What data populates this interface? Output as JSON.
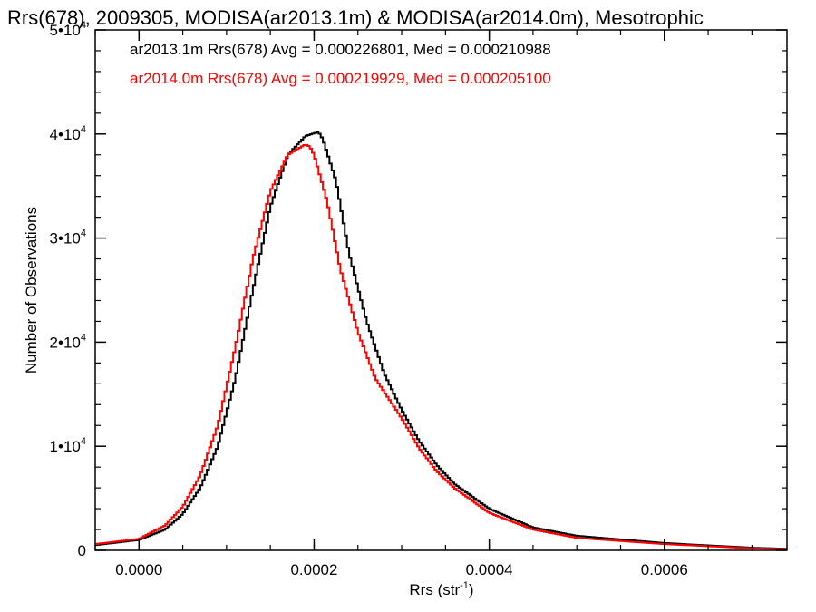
{
  "chart_data": {
    "type": "line",
    "title": "Rrs(678), 2009305, MODISA(ar2013.1m) & MODISA(ar2014.0m), Mesotrophic",
    "xlabel": "Rrs (str",
    "xlabel_sup": "-1",
    "xlabel_end": ")",
    "ylabel": "Number of Observations",
    "xlim": [
      -5e-05,
      0.00074
    ],
    "ylim": [
      0,
      50000
    ],
    "x_ticks": [
      {
        "value": 0.0,
        "label": "0.0000"
      },
      {
        "value": 0.0002,
        "label": "0.0002"
      },
      {
        "value": 0.0004,
        "label": "0.0004"
      },
      {
        "value": 0.0006,
        "label": "0.0006"
      }
    ],
    "y_ticks": [
      {
        "value": 0,
        "label": "0",
        "sup": ""
      },
      {
        "value": 10000,
        "label": "1•10",
        "sup": "4"
      },
      {
        "value": 20000,
        "label": "2•10",
        "sup": "4"
      },
      {
        "value": 30000,
        "label": "3•10",
        "sup": "4"
      },
      {
        "value": 40000,
        "label": "4•10",
        "sup": "4"
      },
      {
        "value": 50000,
        "label": "5•10",
        "sup": "4"
      }
    ],
    "series": [
      {
        "name": "ar2013.1m",
        "color": "#000000",
        "stats_text": "ar2013.1m Rrs(678) Avg = 0.000226801, Med = 0.000210988",
        "x": [
          -5e-05,
          0.0,
          3e-05,
          5e-05,
          7e-05,
          9e-05,
          0.00011,
          0.00013,
          0.00015,
          0.00017,
          0.00019,
          0.000205,
          0.00021,
          0.000225,
          0.00024,
          0.00026,
          0.00028,
          0.0003,
          0.00032,
          0.00034,
          0.00036,
          0.0004,
          0.00045,
          0.0005,
          0.0006,
          0.0007,
          0.00074
        ],
        "y": [
          500,
          1000,
          2000,
          3500,
          6000,
          10000,
          16500,
          25000,
          33000,
          38000,
          39800,
          40200,
          39500,
          35500,
          28500,
          22000,
          17000,
          13500,
          10500,
          8200,
          6400,
          4000,
          2200,
          1400,
          700,
          250,
          150
        ]
      },
      {
        "name": "ar2014.0m",
        "color": "#ff0000",
        "stats_text": "ar2014.0m Rrs(678) Avg = 0.000219929, Med = 0.000205100",
        "x": [
          -5e-05,
          0.0,
          3e-05,
          5e-05,
          7e-05,
          9e-05,
          0.00011,
          0.00013,
          0.00015,
          0.00017,
          0.00019,
          0.000195,
          0.0002,
          0.000215,
          0.00023,
          0.00025,
          0.00027,
          0.0003,
          0.00032,
          0.00034,
          0.00036,
          0.0004,
          0.00045,
          0.0005,
          0.0006,
          0.0007,
          0.00074
        ],
        "y": [
          600,
          1100,
          2400,
          4200,
          7200,
          12000,
          19500,
          28000,
          34500,
          38000,
          39000,
          38800,
          38000,
          33500,
          27000,
          21000,
          16500,
          12700,
          9800,
          7600,
          6000,
          3600,
          2000,
          1200,
          600,
          200,
          120
        ]
      }
    ],
    "grid": false,
    "legend_placement": "top-left"
  }
}
